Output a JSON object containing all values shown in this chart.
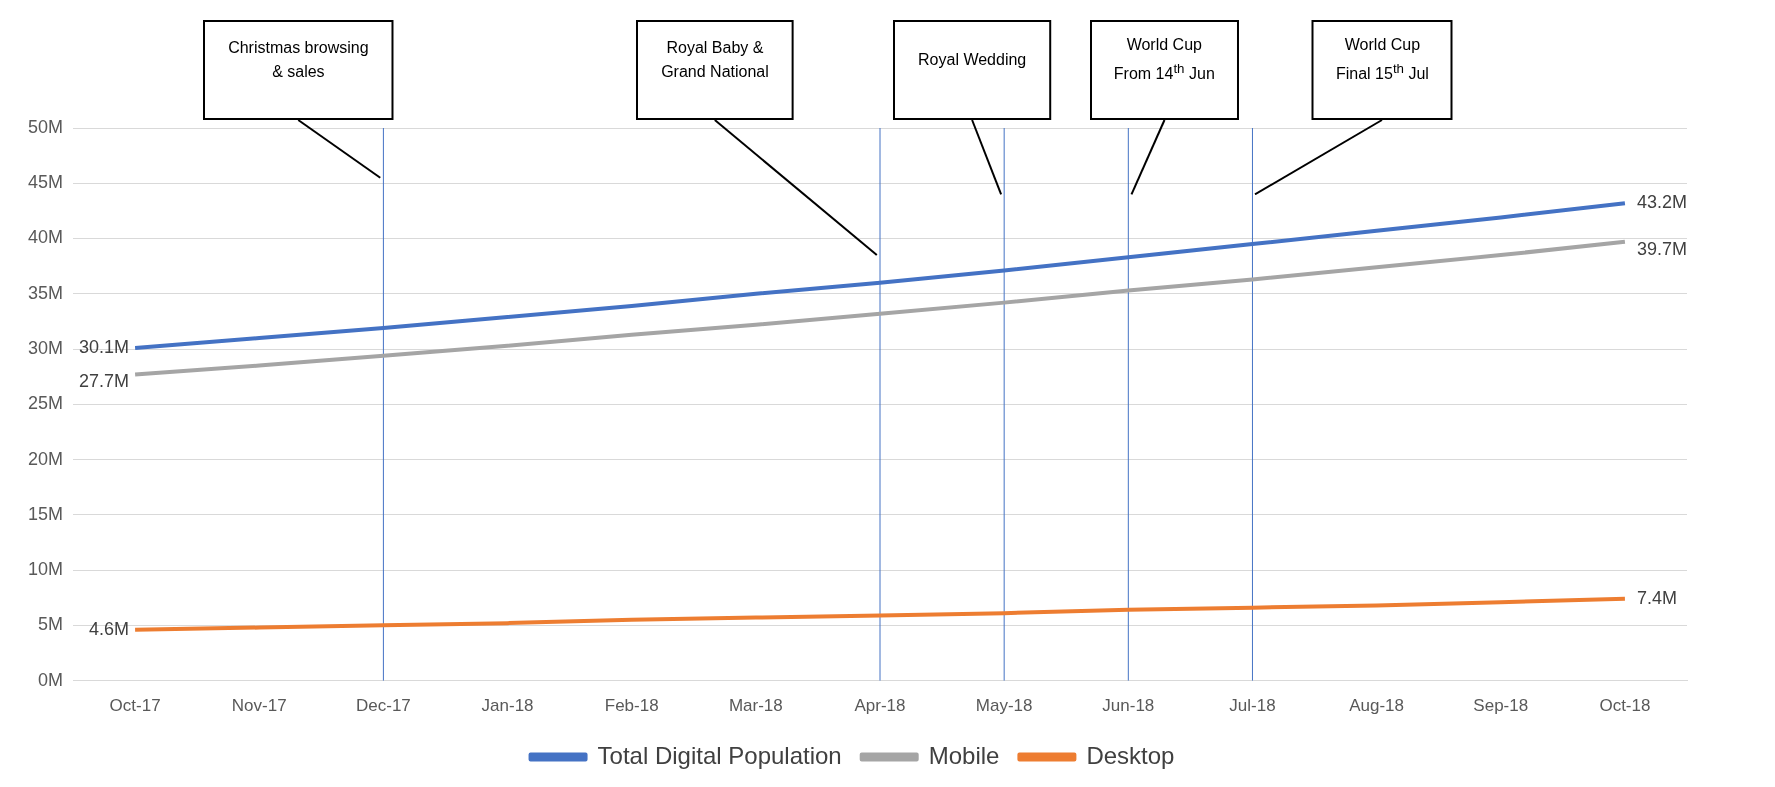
{
  "chart_data": {
    "type": "line",
    "categories": [
      "Oct-17",
      "Nov-17",
      "Dec-17",
      "Jan-18",
      "Feb-18",
      "Mar-18",
      "Apr-18",
      "May-18",
      "Jun-18",
      "Jul-18",
      "Aug-18",
      "Sep-18",
      "Oct-18"
    ],
    "series": [
      {
        "name": "Total Digital Population",
        "color": "#4472c4",
        "values": [
          30.1,
          31.0,
          31.9,
          32.9,
          33.9,
          35.0,
          36.0,
          37.1,
          38.3,
          39.5,
          40.7,
          41.9,
          43.2
        ],
        "value_labels": [
          "30.1M",
          null,
          null,
          null,
          null,
          null,
          null,
          null,
          null,
          null,
          null,
          null,
          "43.2M"
        ]
      },
      {
        "name": "Mobile",
        "color": "#a5a5a5",
        "values": [
          27.7,
          28.5,
          29.4,
          30.3,
          31.3,
          32.2,
          33.2,
          34.2,
          35.3,
          36.3,
          37.4,
          38.5,
          39.7
        ],
        "value_labels": [
          "27.7M",
          null,
          null,
          null,
          null,
          null,
          null,
          null,
          null,
          null,
          null,
          null,
          "39.7M"
        ]
      },
      {
        "name": "Desktop",
        "color": "#ed7d31",
        "values": [
          4.6,
          4.8,
          5.0,
          5.2,
          5.5,
          5.7,
          5.9,
          6.1,
          6.4,
          6.6,
          6.8,
          7.1,
          7.4
        ],
        "value_labels": [
          "4.6M",
          null,
          null,
          null,
          null,
          null,
          null,
          null,
          null,
          null,
          null,
          null,
          "7.4M"
        ]
      }
    ],
    "ylim": [
      0,
      50
    ],
    "yticks": [
      {
        "value": 0,
        "label": "0M"
      },
      {
        "value": 5,
        "label": "5M"
      },
      {
        "value": 10,
        "label": "10M"
      },
      {
        "value": 15,
        "label": "15M"
      },
      {
        "value": 20,
        "label": "20M"
      },
      {
        "value": 25,
        "label": "25M"
      },
      {
        "value": 30,
        "label": "30M"
      },
      {
        "value": 35,
        "label": "35M"
      },
      {
        "value": 40,
        "label": "40M"
      },
      {
        "value": 45,
        "label": "45M"
      },
      {
        "value": 50,
        "label": "50M"
      }
    ],
    "grid": "y",
    "legend": "bottom",
    "marker": "none",
    "line_style": "solid",
    "ref_lines": [
      {
        "axis": "x",
        "value": "Dec-17",
        "color": "#4472c4"
      },
      {
        "axis": "x",
        "value": "Apr-18",
        "color": "#4472c4"
      },
      {
        "axis": "x",
        "value": "May-18",
        "color": "#4472c4"
      },
      {
        "axis": "x",
        "value": "Jun-18",
        "color": "#4472c4"
      },
      {
        "axis": "x",
        "value": "Jul-18",
        "color": "#4472c4"
      }
    ],
    "annotations": [
      "Christmas browsing\n& sales",
      "Royal Baby &\nGrand National",
      "Royal Wedding",
      "World Cup\nFrom 14$^{th}$ Jun",
      "World Cup\nFinal 15$^{th}$ Jul"
    ]
  }
}
